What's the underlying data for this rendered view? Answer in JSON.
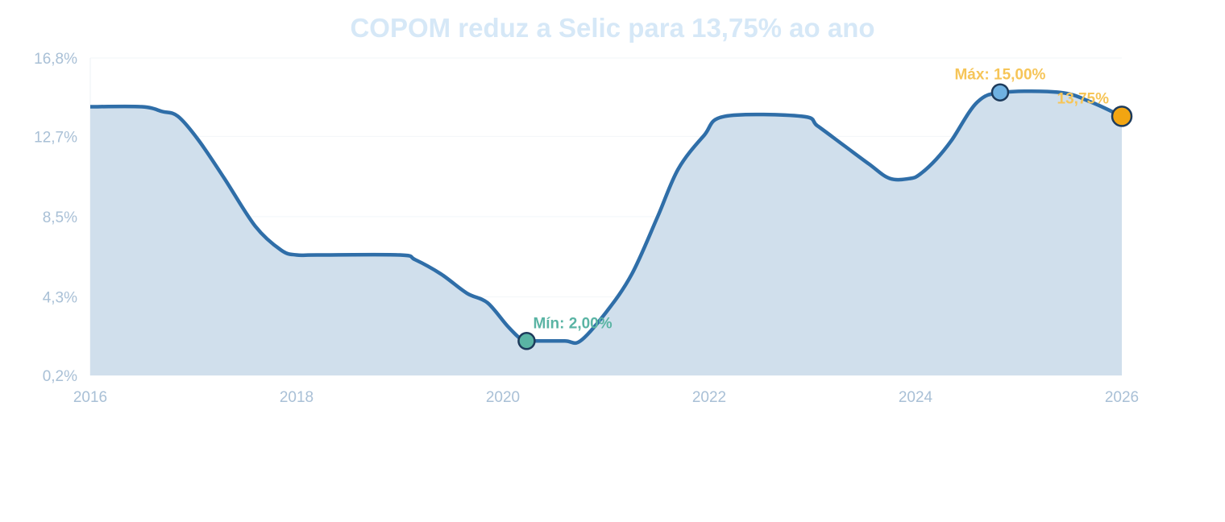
{
  "chart_data": {
    "type": "area",
    "title": "COPOM reduz a Selic para 13,75% ao ano",
    "xlabel": "",
    "ylabel": "",
    "xlim": [
      2016,
      2026
    ],
    "ylim": [
      0.2,
      16.8
    ],
    "x_ticks": [
      2016,
      2018,
      2020,
      2022,
      2024,
      2026
    ],
    "x_tick_labels": [
      "2016",
      "2018",
      "2020",
      "2022",
      "2024",
      "2026"
    ],
    "y_ticks": [
      0.2,
      4.3,
      8.5,
      12.7,
      16.8
    ],
    "y_tick_labels": [
      "0,2%",
      "4,3%",
      "8,5%",
      "12,7%",
      "16,8%"
    ],
    "grid": "horizontal",
    "legend": "none",
    "series": [
      {
        "x": [
          2016.0,
          2016.5,
          2016.7,
          2016.85,
          2017.05,
          2017.3,
          2017.6,
          2017.85,
          2018.0,
          2018.2,
          2019.0,
          2019.15,
          2019.4,
          2019.65,
          2019.85,
          2020.05,
          2020.2,
          2020.3,
          2020.6,
          2020.75,
          2021.0,
          2021.25,
          2021.5,
          2021.7,
          2021.95,
          2022.15,
          2022.9,
          2023.05,
          2023.3,
          2023.55,
          2023.75,
          2023.95,
          2024.05,
          2024.2,
          2024.35,
          2024.6,
          2024.85,
          2025.4,
          2025.7,
          2026.0
        ],
        "y": [
          14.25,
          14.25,
          14.0,
          13.75,
          12.5,
          10.5,
          8.0,
          6.75,
          6.5,
          6.5,
          6.5,
          6.25,
          5.5,
          4.5,
          4.0,
          2.75,
          2.0,
          2.0,
          2.0,
          2.0,
          3.5,
          5.5,
          8.5,
          11.0,
          12.75,
          13.75,
          13.75,
          13.25,
          12.25,
          11.25,
          10.5,
          10.5,
          10.75,
          11.5,
          12.5,
          14.5,
          15.0,
          15.0,
          14.5,
          13.75
        ]
      }
    ],
    "annotations": {
      "min_label": "Mín: 2,00%",
      "max_label": "Máx: 15,00%",
      "last_label": "13,75%",
      "min_point": {
        "x": 2020.23,
        "y": 2.0
      },
      "max_point": {
        "x": 2024.82,
        "y": 15.0
      },
      "last_point": {
        "x": 2026.0,
        "y": 13.75
      }
    },
    "colors": {
      "line": "#2f6ea8",
      "area": "#d0dfec",
      "min": "#5ab4a4",
      "max": "#6fb1e1",
      "last": "#f2a512",
      "label_last": "#f6c558",
      "title": "#d6e8f7",
      "tick": "#a9c0d6"
    }
  }
}
